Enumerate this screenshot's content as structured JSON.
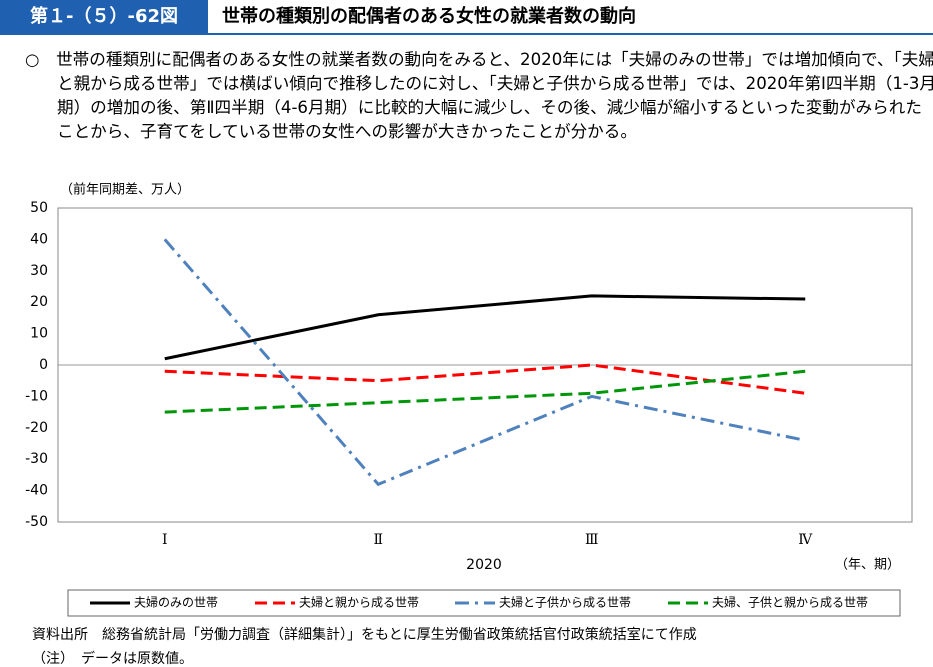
{
  "header": {
    "figure_number": "第１-（５）-62図",
    "title": "世帯の種類別の配偶者のある女性の就業者数の動向"
  },
  "summary": "○　世帯の種類別に配偶者のある女性の就業者数の動向をみると、2020年には「夫婦のみの世帯」では増加傾向で、「夫婦と親から成る世帯」では横ばい傾向で推移したのに対し、「夫婦と子供から成る世帯」では、2020年第Ⅰ四半期（1-3月期）の増加の後、第Ⅱ四半期（4-6月期）に比較的大幅に減少し、その後、減少幅が縮小するといった変動がみられたことから、子育てをしている世帯の女性への影響が大きかったことが分かる。",
  "chart_data": {
    "type": "line",
    "y_label": "（前年同期差、万人）",
    "x_label": "2020",
    "x_unit_label": "（年、期）",
    "categories": [
      "Ⅰ",
      "Ⅱ",
      "Ⅲ",
      "Ⅳ"
    ],
    "series": [
      {
        "name": "夫婦のみの世帯",
        "color": "#000000",
        "dash": "solid",
        "values": [
          2,
          16,
          22,
          21
        ]
      },
      {
        "name": "夫婦と親から成る世帯",
        "color": "#ff0000",
        "dash": "dashed",
        "values": [
          -2,
          -5,
          0,
          -9
        ]
      },
      {
        "name": "夫婦と子供から成る世帯",
        "color": "#4f81bd",
        "dash": "dashdot",
        "values": [
          40,
          -38,
          -10,
          -24
        ]
      },
      {
        "name": "夫婦、子供と親から成る世帯",
        "color": "#00960a",
        "dash": "dashed",
        "values": [
          -15,
          -12,
          -9,
          -2
        ]
      }
    ],
    "ylim": [
      -50,
      50
    ],
    "yticks": [
      -50,
      -40,
      -30,
      -20,
      -10,
      0,
      10,
      20,
      30,
      40,
      50
    ],
    "legend": "bottom"
  },
  "notes": {
    "source": "資料出所　総務省統計局「労働力調査（詳細集計）」をもとに厚生労働省政策統括官付政策統括室にて作成",
    "note": "（注）　データは原数値。"
  }
}
